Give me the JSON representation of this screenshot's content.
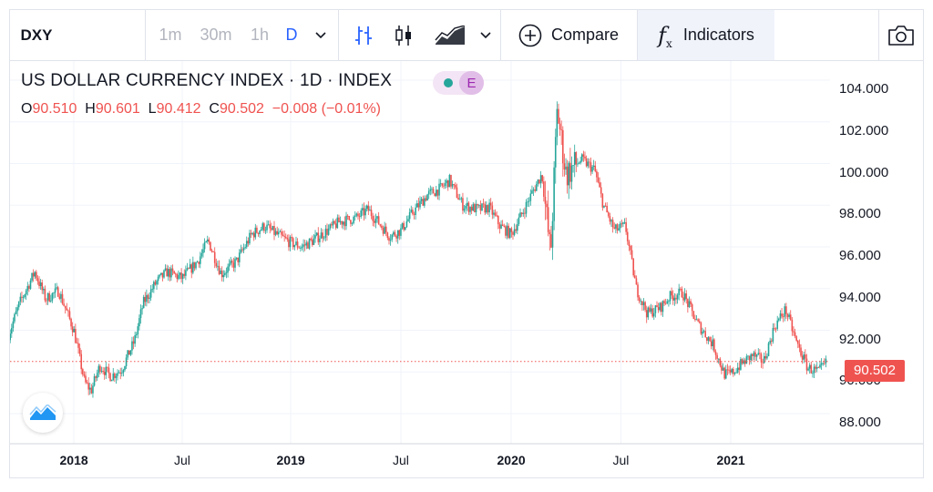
{
  "toolbar": {
    "symbol": "DXY",
    "intervals": [
      "1m",
      "30m",
      "1h",
      "D"
    ],
    "active_interval": "D",
    "compare_label": "Compare",
    "indicators_label": "Indicators",
    "indicators_glyph": "f",
    "indicators_sub": "x"
  },
  "legend": {
    "title": "US DOLLAR CURRENCY INDEX · 1D · INDEX",
    "badge": "E",
    "open_label": "O",
    "open": "90.510",
    "high_label": "H",
    "high": "90.601",
    "low_label": "L",
    "low": "90.412",
    "close_label": "C",
    "close": "90.502",
    "change": "−0.008 (−0.01%)"
  },
  "colors": {
    "up": "#26a69a",
    "down": "#ef5350",
    "accent": "#2962ff"
  },
  "chart_data": {
    "type": "candlestick",
    "title": "US DOLLAR CURRENCY INDEX · 1D · INDEX",
    "ylim": [
      86.0,
      104.5
    ],
    "y_ticks": [
      "104.000",
      "102.000",
      "100.000",
      "98.000",
      "96.000",
      "94.000",
      "92.000",
      "90.000",
      "88.000"
    ],
    "x_ticks": [
      {
        "label": "2018",
        "bold": true,
        "t": 2018.0
      },
      {
        "label": "Jul",
        "bold": false,
        "t": 2018.5
      },
      {
        "label": "2019",
        "bold": true,
        "t": 2019.0
      },
      {
        "label": "Jul",
        "bold": false,
        "t": 2019.5
      },
      {
        "label": "2020",
        "bold": true,
        "t": 2020.0
      },
      {
        "label": "Jul",
        "bold": false,
        "t": 2020.5
      },
      {
        "label": "2021",
        "bold": true,
        "t": 2021.0
      }
    ],
    "last_price": 90.502,
    "last_price_label": "90.502",
    "series_path": [
      [
        2017.7,
        91.8
      ],
      [
        2017.75,
        93.3
      ],
      [
        2017.82,
        94.8
      ],
      [
        2017.87,
        93.5
      ],
      [
        2017.93,
        93.9
      ],
      [
        2018.0,
        92.0
      ],
      [
        2018.05,
        89.5
      ],
      [
        2018.08,
        89.1
      ],
      [
        2018.12,
        90.3
      ],
      [
        2018.17,
        89.8
      ],
      [
        2018.22,
        90.1
      ],
      [
        2018.28,
        91.5
      ],
      [
        2018.32,
        93.3
      ],
      [
        2018.38,
        94.3
      ],
      [
        2018.43,
        94.8
      ],
      [
        2018.5,
        94.5
      ],
      [
        2018.57,
        95.3
      ],
      [
        2018.62,
        96.3
      ],
      [
        2018.68,
        94.7
      ],
      [
        2018.75,
        95.3
      ],
      [
        2018.82,
        96.6
      ],
      [
        2018.88,
        97.0
      ],
      [
        2018.95,
        96.5
      ],
      [
        2019.0,
        96.2
      ],
      [
        2019.05,
        96.0
      ],
      [
        2019.1,
        96.3
      ],
      [
        2019.17,
        96.8
      ],
      [
        2019.22,
        97.2
      ],
      [
        2019.3,
        97.4
      ],
      [
        2019.35,
        97.8
      ],
      [
        2019.45,
        96.5
      ],
      [
        2019.5,
        96.8
      ],
      [
        2019.55,
        97.6
      ],
      [
        2019.62,
        98.5
      ],
      [
        2019.68,
        98.8
      ],
      [
        2019.72,
        99.2
      ],
      [
        2019.78,
        98.0
      ],
      [
        2019.85,
        97.8
      ],
      [
        2019.9,
        97.9
      ],
      [
        2019.95,
        97.0
      ],
      [
        2020.0,
        96.6
      ],
      [
        2020.05,
        97.6
      ],
      [
        2020.1,
        98.7
      ],
      [
        2020.14,
        99.5
      ],
      [
        2020.18,
        95.6
      ],
      [
        2020.21,
        102.6
      ],
      [
        2020.25,
        99.5
      ],
      [
        2020.32,
        100.2
      ],
      [
        2020.38,
        99.7
      ],
      [
        2020.42,
        98.0
      ],
      [
        2020.47,
        96.8
      ],
      [
        2020.52,
        97.0
      ],
      [
        2020.57,
        94.0
      ],
      [
        2020.62,
        92.8
      ],
      [
        2020.68,
        93.1
      ],
      [
        2020.72,
        93.6
      ],
      [
        2020.78,
        93.8
      ],
      [
        2020.85,
        92.3
      ],
      [
        2020.92,
        91.3
      ],
      [
        2020.97,
        89.9
      ],
      [
        2021.0,
        89.9
      ],
      [
        2021.05,
        90.4
      ],
      [
        2021.1,
        90.8
      ],
      [
        2021.15,
        90.5
      ],
      [
        2021.2,
        92.2
      ],
      [
        2021.25,
        93.0
      ],
      [
        2021.3,
        91.4
      ],
      [
        2021.35,
        90.2
      ],
      [
        2021.4,
        90.0
      ],
      [
        2021.44,
        90.5
      ]
    ]
  }
}
